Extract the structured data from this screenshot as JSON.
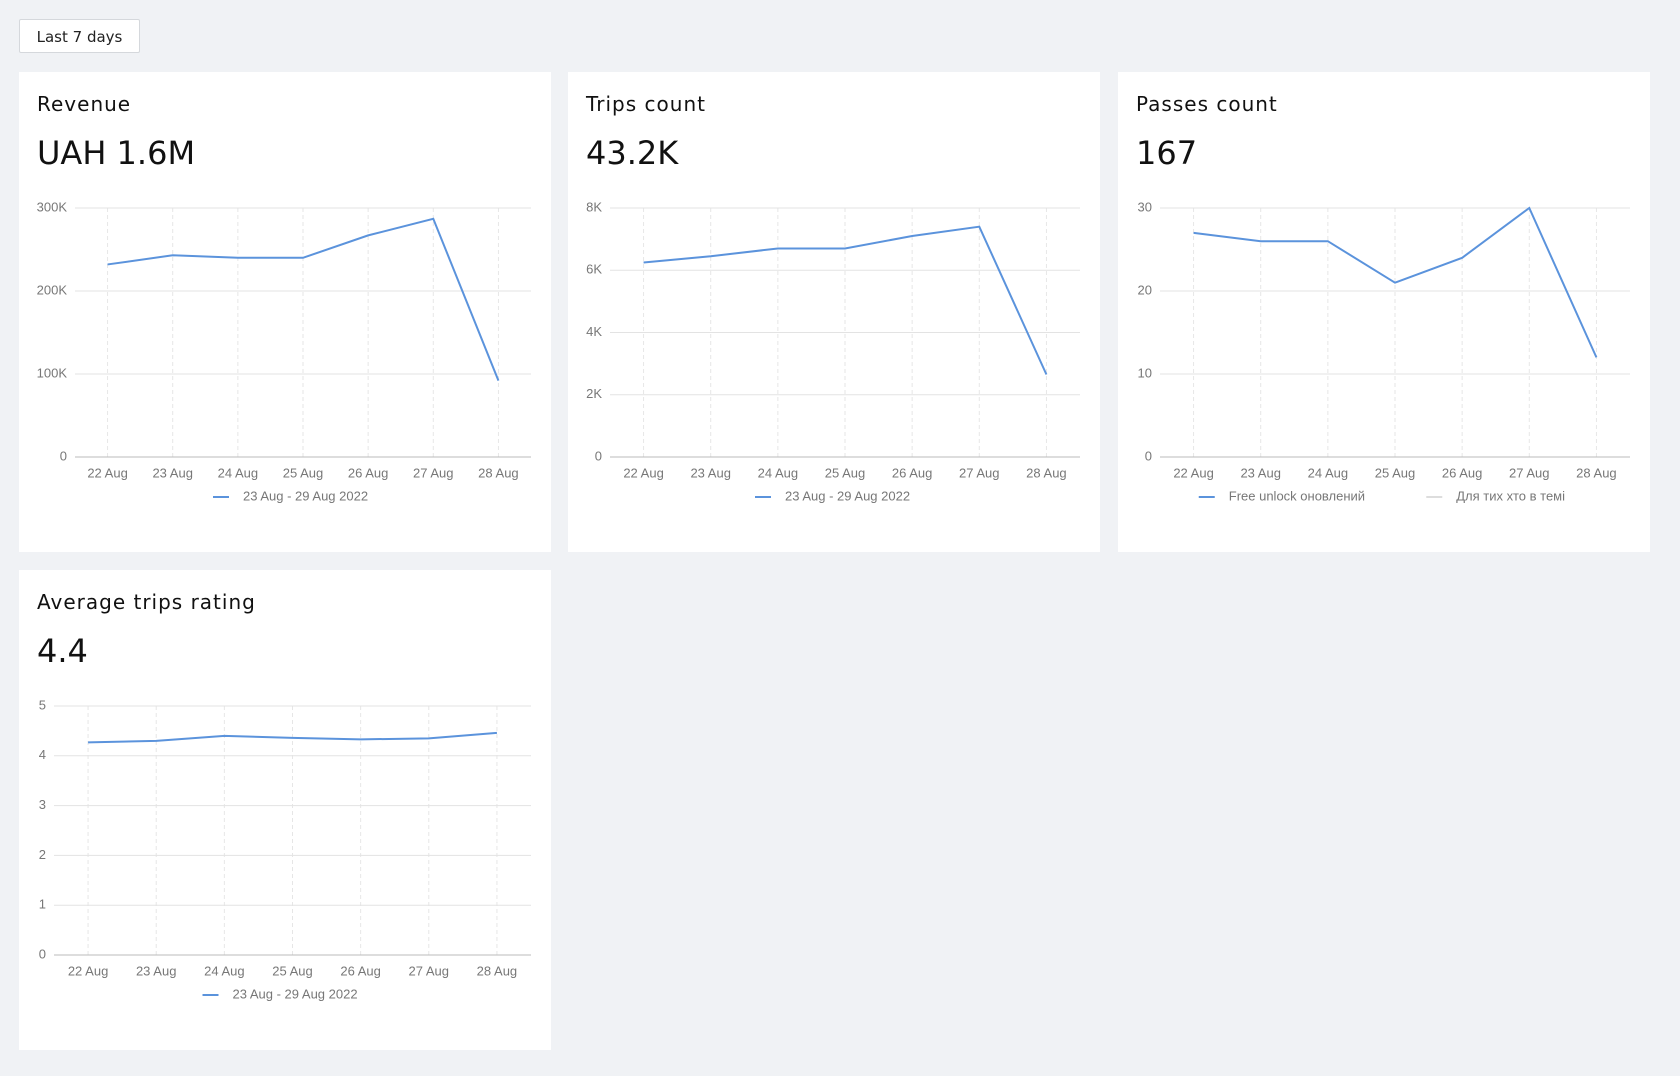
{
  "button": "Last 7 days",
  "chart_data": [
    {
      "type": "line",
      "title": "Revenue",
      "kpi": "UAH 1.6M",
      "categories": [
        "22 Aug",
        "23 Aug",
        "24 Aug",
        "25 Aug",
        "26 Aug",
        "27 Aug",
        "28 Aug"
      ],
      "series": [
        {
          "name": "23 Aug - 29 Aug 2022",
          "color": "#5b93dc",
          "values": [
            232000,
            243000,
            240000,
            240000,
            267000,
            287000,
            92000
          ]
        }
      ],
      "ylim": [
        0,
        300000
      ],
      "yticks": [
        0,
        {
          "value": 100000,
          "label": "100K"
        },
        {
          "value": 200000,
          "label": "200K"
        },
        {
          "value": 300000,
          "label": "300K"
        }
      ],
      "grid": true
    },
    {
      "type": "line",
      "title": "Trips count",
      "kpi": "43.2K",
      "categories": [
        "22 Aug",
        "23 Aug",
        "24 Aug",
        "25 Aug",
        "26 Aug",
        "27 Aug",
        "28 Aug"
      ],
      "series": [
        {
          "name": "23 Aug - 29 Aug 2022",
          "color": "#5b93dc",
          "values": [
            6250,
            6450,
            6700,
            6700,
            7100,
            7400,
            2650
          ]
        }
      ],
      "ylim": [
        0,
        8000
      ],
      "yticks": [
        0,
        {
          "value": 2000,
          "label": "2K"
        },
        {
          "value": 4000,
          "label": "4K"
        },
        {
          "value": 6000,
          "label": "6K"
        },
        {
          "value": 8000,
          "label": "8K"
        }
      ],
      "grid": true
    },
    {
      "type": "line",
      "title": "Passes count",
      "kpi": "167",
      "categories": [
        "22 Aug",
        "23 Aug",
        "24 Aug",
        "25 Aug",
        "26 Aug",
        "27 Aug",
        "28 Aug"
      ],
      "series": [
        {
          "name": "Free unlock оновлений",
          "color": "#5b93dc",
          "values": [
            27,
            26,
            26,
            21,
            24,
            30,
            12
          ]
        },
        {
          "name": "Для тих хто в темі",
          "color": "#dddddd",
          "values": [
            null,
            null,
            null,
            null,
            null,
            null,
            null
          ]
        }
      ],
      "ylim": [
        0,
        30
      ],
      "yticks": [
        0,
        10,
        20,
        30
      ],
      "grid": true
    },
    {
      "type": "line",
      "title": "Average trips rating",
      "kpi": "4.4",
      "categories": [
        "22 Aug",
        "23 Aug",
        "24 Aug",
        "25 Aug",
        "26 Aug",
        "27 Aug",
        "28 Aug"
      ],
      "series": [
        {
          "name": "23 Aug - 29 Aug 2022",
          "color": "#5b93dc",
          "values": [
            4.27,
            4.3,
            4.4,
            4.36,
            4.33,
            4.35,
            4.46
          ]
        }
      ],
      "ylim": [
        0,
        5
      ],
      "yticks": [
        0,
        1,
        2,
        3,
        4,
        5
      ],
      "grid": true
    }
  ]
}
